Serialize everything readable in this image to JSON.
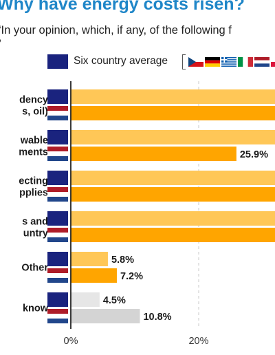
{
  "title": "Why have energy costs risen?",
  "subtitle_lines": [
    "“In your opinion, which, if any, of the following f",
    "”"
  ],
  "legend": {
    "average_label": "Six country average",
    "average_color": "#1a237e",
    "country_flags": [
      "czech-flag",
      "german-flag",
      "greek-flag",
      "italian-flag",
      "dutch-flag",
      "flag-partial"
    ]
  },
  "chart_data": {
    "type": "bar",
    "orientation": "horizontal",
    "categories": [
      "dency\ns, oil)",
      "wable\nments",
      "ecting\npplies",
      "s and\nuntry",
      "Other",
      "know"
    ],
    "series": [
      {
        "values": [
          null,
          null,
          null,
          null,
          5.8,
          4.5
        ]
      },
      {
        "values": [
          null,
          25.9,
          null,
          null,
          7.2,
          10.8
        ]
      }
    ],
    "value_labels": [
      [
        "",
        ""
      ],
      [
        "",
        "25.9%"
      ],
      [
        "",
        ""
      ],
      [
        "",
        ""
      ],
      [
        "5.8%",
        "7.2%"
      ],
      [
        "4.5%",
        "10.8%"
      ]
    ],
    "bar_colors": [
      [
        "#ffc757",
        "#ffa500"
      ],
      [
        "#ffc757",
        "#ffa500"
      ],
      [
        "#ffc757",
        "#ffa500"
      ],
      [
        "#ffc757",
        "#ffa500"
      ],
      [
        "#ffc757",
        "#ffa500"
      ],
      [
        "#e6e6e6",
        "#d4d4d4"
      ]
    ],
    "x_ticks": [
      "0%",
      "20%"
    ],
    "x_tick_values": [
      0,
      20
    ],
    "grid": true,
    "truncated_right": true
  }
}
